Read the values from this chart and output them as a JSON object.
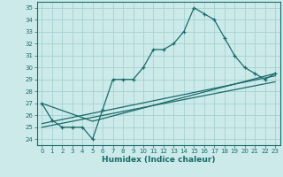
{
  "title": "",
  "xlabel": "Humidex (Indice chaleur)",
  "bg_color": "#cceaea",
  "grid_color": "#aad4d4",
  "line_color": "#1a6b6b",
  "xlim": [
    -0.5,
    23.5
  ],
  "ylim": [
    23.5,
    35.5
  ],
  "xticks": [
    0,
    1,
    2,
    3,
    4,
    5,
    6,
    7,
    8,
    9,
    10,
    11,
    12,
    13,
    14,
    15,
    16,
    17,
    18,
    19,
    20,
    21,
    22,
    23
  ],
  "yticks": [
    24,
    25,
    26,
    27,
    28,
    29,
    30,
    31,
    32,
    33,
    34,
    35
  ],
  "main_x": [
    0,
    1,
    2,
    3,
    4,
    5,
    6,
    7,
    8,
    9,
    10,
    11,
    12,
    13,
    14,
    15,
    16,
    17,
    18,
    19,
    20,
    21,
    22,
    23
  ],
  "main_y": [
    27.0,
    25.6,
    25.0,
    25.0,
    25.0,
    24.0,
    26.5,
    29.0,
    29.0,
    29.0,
    30.0,
    31.5,
    31.5,
    32.0,
    33.0,
    35.0,
    34.5,
    34.0,
    32.5,
    31.0,
    30.0,
    29.5,
    29.0,
    29.5
  ],
  "line2_x": [
    0,
    5,
    23
  ],
  "line2_y": [
    27.0,
    25.5,
    29.5
  ],
  "line3_x": [
    0,
    23
  ],
  "line3_y": [
    25.0,
    28.8
  ],
  "line4_x": [
    0,
    23
  ],
  "line4_y": [
    25.3,
    29.3
  ]
}
